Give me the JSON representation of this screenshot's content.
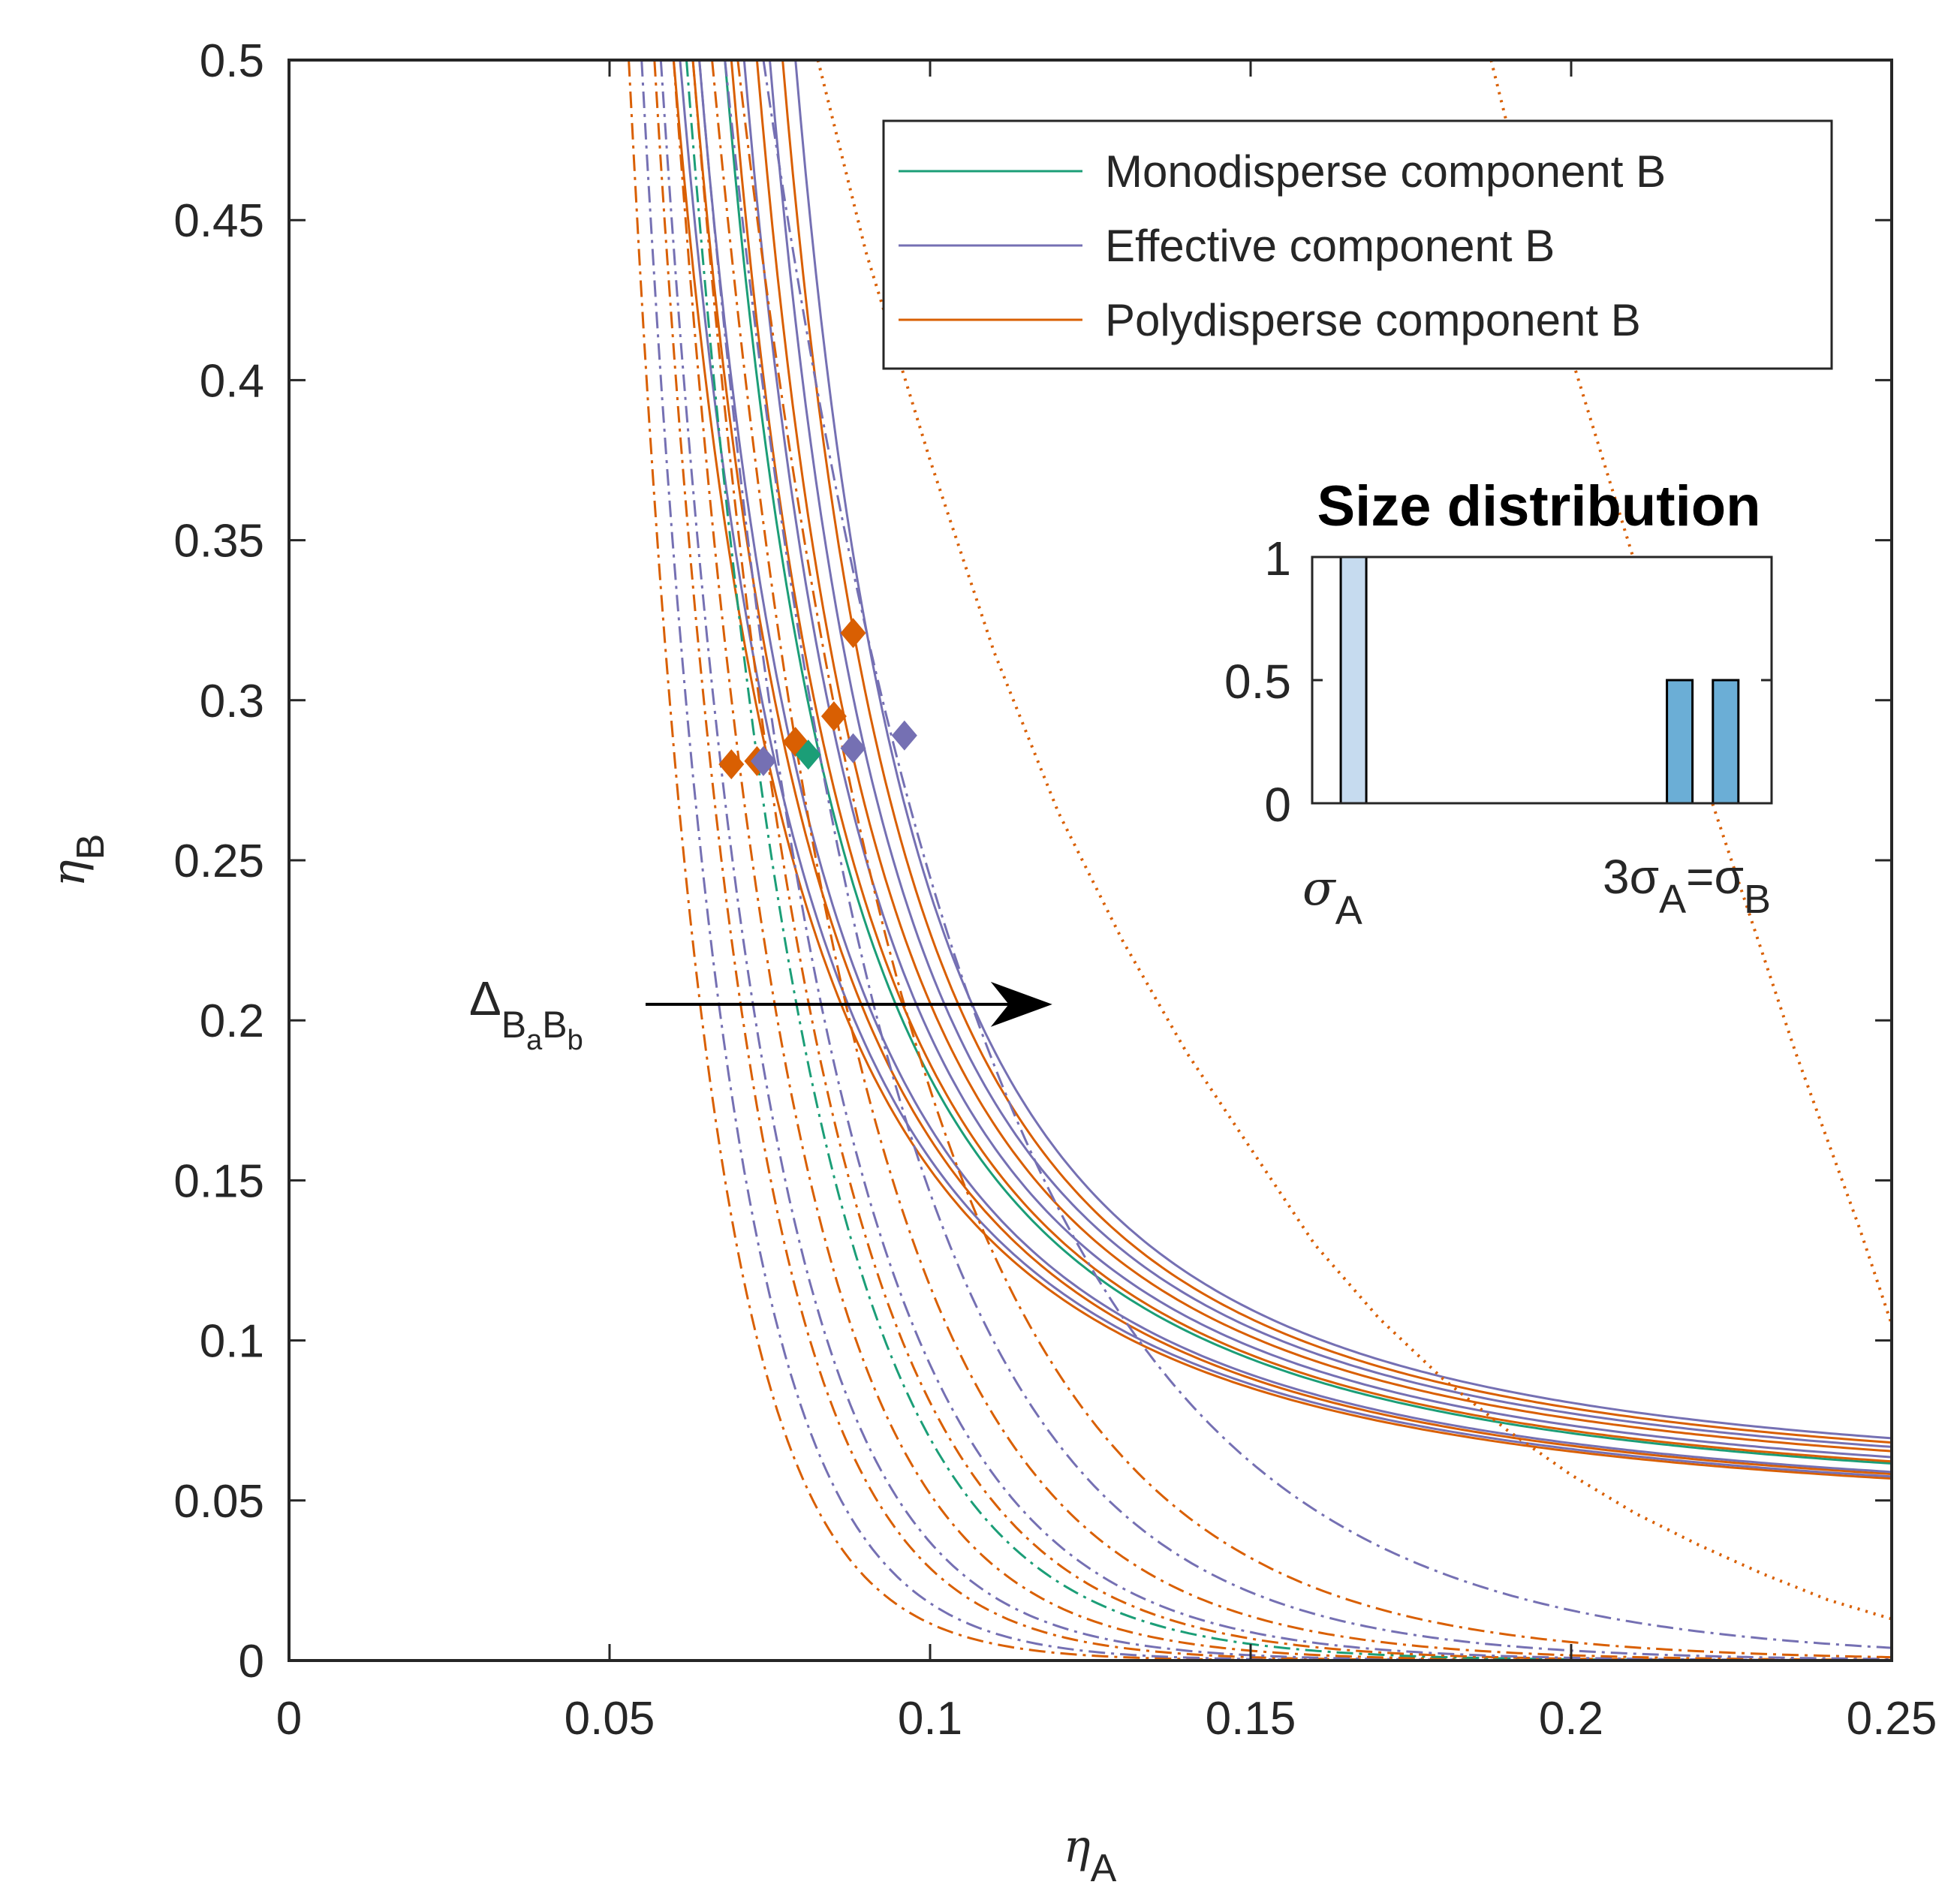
{
  "chart_data": {
    "type": "line",
    "main": {
      "xlabel": {
        "base": "η",
        "sub": "A"
      },
      "ylabel": {
        "base": "η",
        "sub": "B"
      },
      "xlim": [
        0,
        0.25
      ],
      "ylim": [
        0,
        0.5
      ],
      "xticks": [
        "0",
        "0.05",
        "0.1",
        "0.15",
        "0.2",
        "0.25"
      ],
      "yticks": [
        "0",
        "0.05",
        "0.1",
        "0.15",
        "0.2",
        "0.25",
        "0.3",
        "0.35",
        "0.4",
        "0.45",
        "0.5"
      ],
      "grid": false,
      "legend_position": "top-right",
      "legend": [
        {
          "name": "Monodisperse component B",
          "color": "#1b9e77"
        },
        {
          "name": "Effective component B",
          "color": "#7570b3"
        },
        {
          "name": "Polydisperse component B",
          "color": "#d95f02"
        }
      ],
      "solid_curves": [
        {
          "color": "#d95f02",
          "a": 0.06,
          "c": 0.078
        },
        {
          "color": "#7570b3",
          "a": 0.061,
          "c": 0.079
        },
        {
          "color": "#d95f02",
          "a": 0.063,
          "c": 0.08
        },
        {
          "color": "#7570b3",
          "a": 0.064,
          "c": 0.081
        },
        {
          "color": "#1b9e77",
          "a": 0.068,
          "c": 0.085
        },
        {
          "color": "#d95f02",
          "a": 0.069,
          "c": 0.086
        },
        {
          "color": "#7570b3",
          "a": 0.071,
          "c": 0.088
        },
        {
          "color": "#d95f02",
          "a": 0.073,
          "c": 0.091
        },
        {
          "color": "#7570b3",
          "a": 0.075,
          "c": 0.093
        },
        {
          "color": "#d95f02",
          "a": 0.077,
          "c": 0.095
        },
        {
          "color": "#7570b3",
          "a": 0.079,
          "c": 0.097
        }
      ],
      "dashdot_curves": [
        {
          "color": "#d95f02",
          "a": 0.053,
          "k": 0.0024
        },
        {
          "color": "#7570b3",
          "a": 0.055,
          "k": 0.0026
        },
        {
          "color": "#d95f02",
          "a": 0.057,
          "k": 0.0029
        },
        {
          "color": "#7570b3",
          "a": 0.058,
          "k": 0.0031
        },
        {
          "color": "#d95f02",
          "a": 0.06,
          "k": 0.0034
        },
        {
          "color": "#1b9e77",
          "a": 0.062,
          "k": 0.0037
        },
        {
          "color": "#d95f02",
          "a": 0.063,
          "k": 0.0039
        },
        {
          "color": "#7570b3",
          "a": 0.064,
          "k": 0.0041
        },
        {
          "color": "#d95f02",
          "a": 0.066,
          "k": 0.0045
        },
        {
          "color": "#7570b3",
          "a": 0.068,
          "k": 0.005
        },
        {
          "color": "#d95f02",
          "a": 0.07,
          "k": 0.0056
        },
        {
          "color": "#7570b3",
          "a": 0.074,
          "k": 0.007
        }
      ],
      "dotted_curves": [
        {
          "color": "#d95f02",
          "x": [
            0.0825,
            0.09,
            0.1,
            0.11,
            0.12,
            0.13,
            0.14,
            0.15,
            0.16,
            0.17,
            0.18,
            0.19,
            0.2,
            0.21,
            0.22,
            0.23,
            0.24,
            0.25
          ],
          "y": [
            0.5,
            0.44,
            0.375,
            0.315,
            0.265,
            0.225,
            0.19,
            0.16,
            0.13,
            0.107,
            0.088,
            0.072,
            0.058,
            0.046,
            0.036,
            0.027,
            0.019,
            0.013
          ]
        },
        {
          "color": "#d95f02",
          "x": [
            0.1875,
            0.195,
            0.205,
            0.215,
            0.225,
            0.235,
            0.245,
            0.25
          ],
          "y": [
            0.5,
            0.44,
            0.375,
            0.31,
            0.25,
            0.19,
            0.135,
            0.105
          ]
        }
      ],
      "markers": [
        {
          "x": 0.069,
          "y": 0.28,
          "color": "#d95f02"
        },
        {
          "x": 0.073,
          "y": 0.281,
          "color": "#d95f02"
        },
        {
          "x": 0.074,
          "y": 0.281,
          "color": "#7570b3"
        },
        {
          "x": 0.079,
          "y": 0.287,
          "color": "#d95f02"
        },
        {
          "x": 0.081,
          "y": 0.283,
          "color": "#1b9e77"
        },
        {
          "x": 0.085,
          "y": 0.295,
          "color": "#d95f02"
        },
        {
          "x": 0.088,
          "y": 0.285,
          "color": "#7570b3"
        },
        {
          "x": 0.088,
          "y": 0.321,
          "color": "#d95f02"
        },
        {
          "x": 0.096,
          "y": 0.289,
          "color": "#7570b3"
        }
      ],
      "annotation": {
        "delta": "Δ",
        "b1": "B",
        "s1": "a",
        "b2": "B",
        "s2": "b",
        "arrow_from": [
          0.056,
          0.205
        ],
        "arrow_to": [
          0.12,
          0.205
        ]
      }
    },
    "inset": {
      "type": "bar",
      "title": "Size distribution",
      "ylim": [
        0,
        1
      ],
      "yticks": [
        "0",
        "0.5",
        "1"
      ],
      "xlabel_left": {
        "base": "σ",
        "sub": "A"
      },
      "xlabel_right": {
        "pre": "3σ",
        "sub1": "A",
        "mid": "=σ",
        "sub2": "B"
      },
      "bars": [
        {
          "x": 0.09,
          "value": 1.0,
          "color": "#c6dbef"
        },
        {
          "x": 0.8,
          "value": 0.5,
          "color": "#6baed6"
        },
        {
          "x": 0.9,
          "value": 0.5,
          "color": "#6baed6"
        }
      ]
    }
  }
}
